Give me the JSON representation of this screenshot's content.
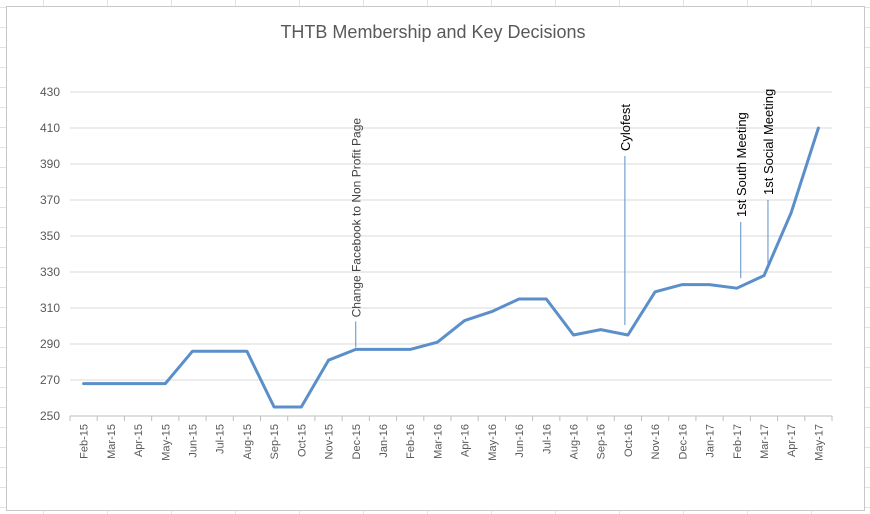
{
  "chart_data": {
    "type": "line",
    "title": "THTB Membership and Key Decisions",
    "xlabel": "",
    "ylabel": "",
    "ylim": [
      250,
      430
    ],
    "yticks": [
      250,
      270,
      290,
      310,
      330,
      350,
      370,
      390,
      410,
      430
    ],
    "grid": true,
    "categories": [
      "Feb-15",
      "Mar-15",
      "Apr-15",
      "May-15",
      "Jun-15",
      "Jul-15",
      "Aug-15",
      "Sep-15",
      "Oct-15",
      "Nov-15",
      "Dec-15",
      "Jan-16",
      "Feb-16",
      "Mar-16",
      "Apr-16",
      "May-16",
      "Jun-16",
      "Jul-16",
      "Aug-16",
      "Sep-16",
      "Oct-16",
      "Nov-16",
      "Dec-16",
      "Jan-17",
      "Feb-17",
      "Mar-17",
      "Apr-17",
      "May-17"
    ],
    "series": [
      {
        "color": "#5b8fc9",
        "values": [
          268,
          268,
          268,
          268,
          286,
          286,
          286,
          255,
          255,
          281,
          287,
          287,
          287,
          291,
          303,
          308,
          315,
          315,
          295,
          298,
          295,
          319,
          323,
          323,
          321,
          328,
          363,
          410
        ]
      }
    ],
    "annotations": [
      {
        "text": "Change Facebook to Non Profit Page",
        "category": "Dec-15",
        "value": 287
      },
      {
        "text": "Cylofest",
        "category": "Oct-16",
        "value": 295
      },
      {
        "text": "1st South Meeting",
        "category": "Feb-17",
        "value": 321
      },
      {
        "text": "1st Social Meeting",
        "category": "Mar-17",
        "value": 328
      }
    ]
  }
}
